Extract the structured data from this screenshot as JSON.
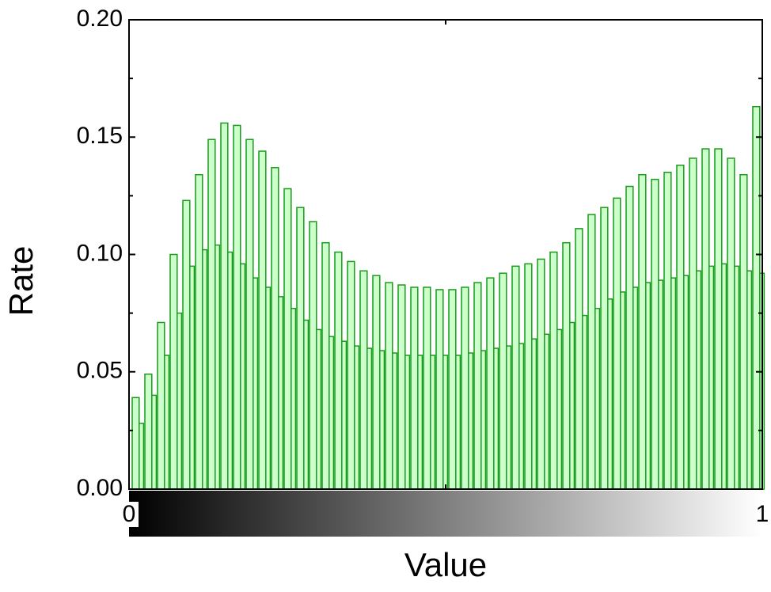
{
  "chart_data": {
    "type": "histogram",
    "x_label": "Value",
    "y_label": "Rate",
    "bins": [
      0,
      0.02,
      0.04,
      0.06,
      0.08,
      0.1,
      0.12,
      0.14,
      0.16,
      0.18,
      0.2,
      0.22,
      0.24,
      0.26,
      0.28,
      0.3,
      0.32,
      0.34,
      0.36,
      0.38,
      0.4,
      0.42,
      0.44,
      0.46,
      0.48,
      0.5,
      0.52,
      0.54,
      0.56,
      0.58,
      0.6,
      0.62,
      0.64,
      0.66,
      0.68,
      0.7,
      0.72,
      0.74,
      0.76,
      0.78,
      0.8,
      0.82,
      0.84,
      0.86,
      0.88,
      0.9,
      0.92,
      0.94,
      0.96,
      0.98,
      1
    ],
    "series": [
      {
        "color": "#1a9a1a",
        "fill": "#ccffcc",
        "values": [
          0.039,
          0.049,
          0.071,
          0.1,
          0.123,
          0.134,
          0.149,
          0.156,
          0.155,
          0.149,
          0.144,
          0.137,
          0.128,
          0.12,
          0.114,
          0.105,
          0.101,
          0.097,
          0.093,
          0.091,
          0.088,
          0.087,
          0.086,
          0.086,
          0.085,
          0.085,
          0.086,
          0.088,
          0.09,
          0.092,
          0.095,
          0.096,
          0.098,
          0.101,
          0.105,
          0.111,
          0.117,
          0.12,
          0.124,
          0.129,
          0.134,
          0.132,
          0.135,
          0.138,
          0.141,
          0.145,
          0.145,
          0.141,
          0.134,
          0.163
        ]
      },
      {
        "color": "#1a9a1a",
        "fill": "#ccffcc",
        "values": [
          0.028,
          0.04,
          0.057,
          0.075,
          0.095,
          0.102,
          0.104,
          0.101,
          0.096,
          0.09,
          0.086,
          0.082,
          0.077,
          0.072,
          0.068,
          0.065,
          0.063,
          0.061,
          0.06,
          0.059,
          0.058,
          0.057,
          0.057,
          0.057,
          0.057,
          0.057,
          0.058,
          0.059,
          0.06,
          0.061,
          0.062,
          0.064,
          0.066,
          0.068,
          0.071,
          0.074,
          0.077,
          0.081,
          0.084,
          0.086,
          0.088,
          0.089,
          0.09,
          0.091,
          0.093,
          0.095,
          0.096,
          0.095,
          0.093,
          0.092
        ]
      }
    ],
    "xlim": [
      0,
      1
    ],
    "xticks": [
      0,
      1
    ],
    "ylim": [
      0,
      0.2
    ],
    "yticks": [
      {
        "value": 0,
        "label": "0.00"
      },
      {
        "value": 0.05,
        "label": "0.05"
      },
      {
        "value": 0.1,
        "label": "0.10"
      },
      {
        "value": 0.15,
        "label": "0.15"
      },
      {
        "value": 0.2,
        "label": "0.20"
      }
    ]
  }
}
